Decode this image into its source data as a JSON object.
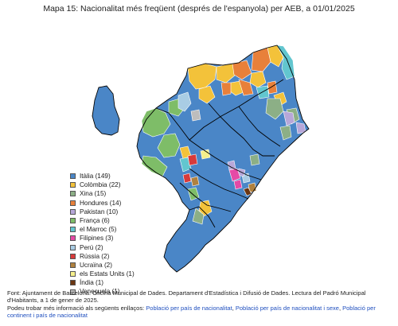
{
  "title": "Mapa 15: Nacionalitat més freqüent (després de l'espanyola) per AEB, a 01/01/2025",
  "colors": {
    "italia": "#4a86c7",
    "colombia": "#f3c23a",
    "xina": "#8caf86",
    "hondures": "#e8803a",
    "pakistan": "#b7a7d9",
    "franca": "#7ebd68",
    "marroc": "#62c6cf",
    "filipines": "#e54aa6",
    "peru": "#a9cce4",
    "russia": "#d83a3a",
    "ucraina": "#b0813f",
    "estats_units": "#f6f08c",
    "india": "#6b3612",
    "veneçuela": "#bdbdbd",
    "border": "#ffffff",
    "district_border": "#000000"
  },
  "legend": [
    {
      "label": "Itàlia (149)",
      "color_key": "italia"
    },
    {
      "label": "Colòmbia (22)",
      "color_key": "colombia"
    },
    {
      "label": "Xina (15)",
      "color_key": "xina"
    },
    {
      "label": "Hondures (14)",
      "color_key": "hondures"
    },
    {
      "label": "Pakistan (10)",
      "color_key": "pakistan"
    },
    {
      "label": "França (6)",
      "color_key": "franca"
    },
    {
      "label": "el Marroc (5)",
      "color_key": "marroc"
    },
    {
      "label": "Filipines (3)",
      "color_key": "filipines"
    },
    {
      "label": "Perú (2)",
      "color_key": "peru"
    },
    {
      "label": "Rússia (2)",
      "color_key": "russia"
    },
    {
      "label": "Ucraïna (2)",
      "color_key": "ucraina"
    },
    {
      "label": "els Estats Units (1)",
      "color_key": "estats_units"
    },
    {
      "label": "Índia (1)",
      "color_key": "india"
    },
    {
      "label": "Veneçuela (1)",
      "color_key": "veneçuela"
    }
  ],
  "footer": {
    "source": "Font: Ajuntament de Barcelona. Oficina Municipal de Dades. Departament d'Estadística i Difusió de Dades. Lectura del Padró Municipal d'Habitants, a 1 de gener de 2025.",
    "more_info": "Podeu trobar més informació als següents enllaços:",
    "link1": "Població per país de nacionalitat",
    "link2": "Població per país de nacionalitat i sexe",
    "link3": "Població per continent i país de nacionalitat",
    "sep1": ", ",
    "sep2": ", "
  }
}
